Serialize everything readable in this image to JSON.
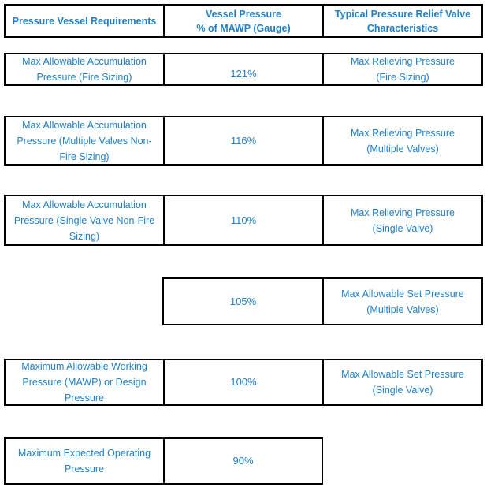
{
  "colors": {
    "text_blue": "#2080C4",
    "border_black": "#000000",
    "background": "#FFFFFF"
  },
  "header": {
    "requirements": "Pressure Vessel Requirements",
    "vessel_pressure": "Vessel Pressure\n% of MAWP (Gauge)",
    "valve_characteristics": "Typical Pressure Relief Valve\nCharacteristics"
  },
  "rows": [
    {
      "requirement": "Max Allowable Accumulation\nPressure (Fire Sizing)",
      "percent": "121%",
      "valve": "Max Relieving Pressure\n(Fire Sizing)"
    },
    {
      "requirement": "Max Allowable Accumulation\nPressure (Multiple Valves Non-\nFire Sizing)",
      "percent": "116%",
      "valve": "Max Relieving Pressure\n(Multiple Valves)"
    },
    {
      "requirement": "Max Allowable Accumulation\nPressure (Single Valve Non-Fire\nSizing)",
      "percent": "110%",
      "valve": "Max Relieving Pressure\n(Single Valve)"
    },
    {
      "percent": "105%",
      "valve": "Max Allowable Set Pressure\n(Multiple Valves)"
    },
    {
      "requirement": "Maximum Allowable Working\nPressure (MAWP) or Design\nPressure",
      "percent": "100%",
      "valve": "Max Allowable Set Pressure\n(Single Valve)"
    },
    {
      "requirement": "Maximum Expected Operating\nPressure",
      "percent": "90%"
    }
  ],
  "chart_data": {
    "type": "table",
    "columns": [
      "Pressure Vessel Requirements",
      "Vessel Pressure % of MAWP (Gauge)",
      "Typical Pressure Relief Valve Characteristics"
    ],
    "rows": [
      [
        "Max Allowable Accumulation Pressure (Fire Sizing)",
        "121%",
        "Max Relieving Pressure (Fire Sizing)"
      ],
      [
        "Max Allowable Accumulation Pressure (Multiple Valves Non-Fire Sizing)",
        "116%",
        "Max Relieving Pressure (Multiple Valves)"
      ],
      [
        "Max Allowable Accumulation Pressure (Single Valve Non-Fire Sizing)",
        "110%",
        "Max Relieving Pressure (Single Valve)"
      ],
      [
        "",
        "105%",
        "Max Allowable Set Pressure (Multiple Valves)"
      ],
      [
        "Maximum Allowable Working Pressure (MAWP) or Design Pressure",
        "100%",
        "Max Allowable Set Pressure (Single Valve)"
      ],
      [
        "Maximum Expected Operating Pressure",
        "90%",
        ""
      ]
    ]
  }
}
